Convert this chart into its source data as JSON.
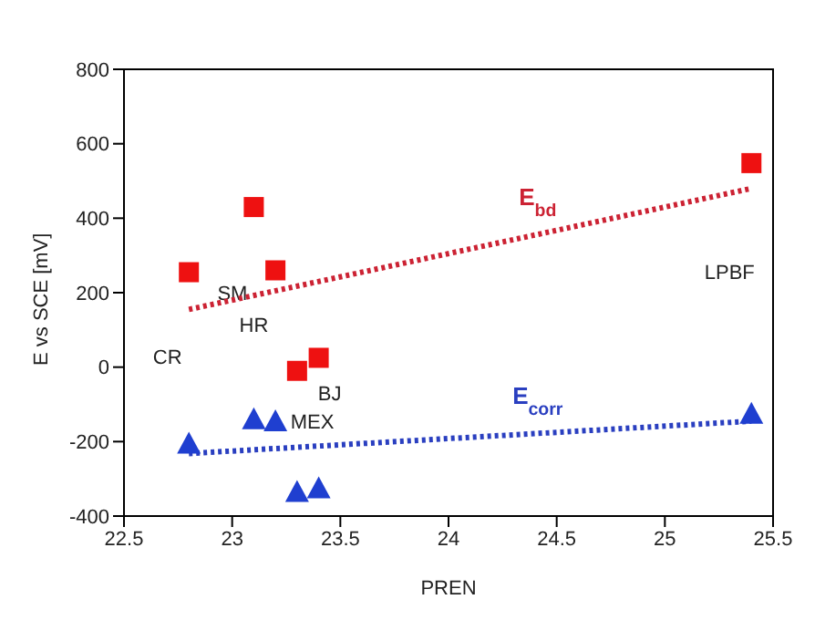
{
  "chart_data": {
    "type": "scatter",
    "xlabel": "PREN",
    "ylabel": "E vs SCE [mV]",
    "xlim": [
      22.5,
      25.5
    ],
    "xticks": [
      22.5,
      23,
      23.5,
      24,
      24.5,
      25,
      25.5
    ],
    "ylim": [
      -400,
      800
    ],
    "yticks": [
      -400,
      -200,
      0,
      200,
      400,
      600,
      800
    ],
    "grid": false,
    "legend": false,
    "series": [
      {
        "color": "#ee1111",
        "marker": "square",
        "x": [
          22.8,
          23.1,
          23.2,
          23.3,
          23.4,
          25.4
        ],
        "values": [
          255,
          430,
          260,
          -10,
          25,
          548
        ]
      },
      {
        "color": "#1f3fd0",
        "marker": "triangle",
        "x": [
          22.8,
          23.1,
          23.2,
          23.3,
          23.4,
          25.4
        ],
        "values": [
          -205,
          -140,
          -145,
          -335,
          -325,
          -125
        ]
      },
      {
        "type": "line",
        "name": "E$_{bd}$",
        "color": "#cc2233",
        "line_style": "dotted",
        "x": [
          22.8,
          25.4
        ],
        "values": [
          155,
          480
        ]
      },
      {
        "type": "line",
        "name": "E$_{corr}$",
        "color": "#2a3fc0",
        "line_style": "dotted",
        "x": [
          22.8,
          25.4
        ],
        "values": [
          -232,
          -145
        ]
      }
    ],
    "annotations": [
      "SM",
      "HR",
      "CR",
      "BJ",
      "MEX",
      "LPBF"
    ]
  }
}
